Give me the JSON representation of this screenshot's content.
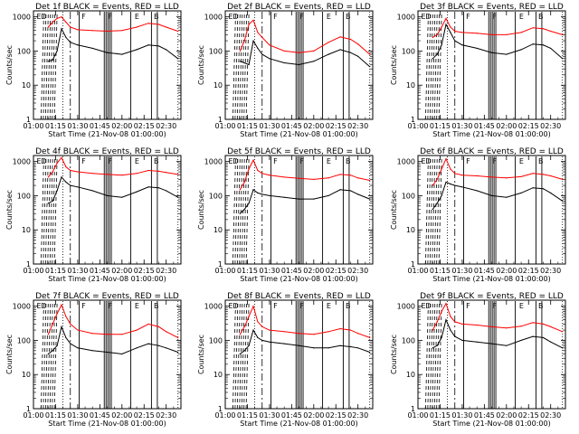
{
  "figure": {
    "x_tick_labels": [
      "01:00",
      "01:15",
      "01:30",
      "01:45",
      "02:00",
      "02:15",
      "02:30"
    ],
    "y_tick_labels": [
      "1",
      "10",
      "100",
      "1000"
    ],
    "x_label": "Start Time (21-Nov-08 01:00:00)",
    "y_label": "Counts/sec",
    "marker_labels": [
      "E",
      "D",
      "F",
      "F",
      "E",
      "B"
    ],
    "colors": {
      "events": "#000000",
      "lld": "#ff0000"
    }
  },
  "chart_data": [
    {
      "type": "line",
      "title": "Det 1f BLACK = Events, RED = LLD",
      "xlabel": "Start Time (21-Nov-08 01:00:00)",
      "ylabel": "Counts/sec",
      "xlim": [
        "01:00",
        "02:40"
      ],
      "ylim": [
        1,
        1500
      ],
      "log_y": true,
      "series": [
        {
          "name": "Events",
          "color": "#000000",
          "x": [
            "01:10",
            "01:13",
            "01:16",
            "01:19",
            "01:22",
            "01:25",
            "01:30",
            "01:40",
            "01:50",
            "02:00",
            "02:10",
            "02:18",
            "02:25",
            "02:30",
            "02:38"
          ],
          "values": [
            50,
            55,
            100,
            450,
            250,
            180,
            150,
            120,
            90,
            80,
            110,
            150,
            140,
            110,
            60
          ]
        },
        {
          "name": "LLD",
          "color": "#ff0000",
          "x": [
            "01:10",
            "01:13",
            "01:16",
            "01:19",
            "01:22",
            "01:25",
            "01:30",
            "01:40",
            "01:50",
            "02:00",
            "02:10",
            "02:18",
            "02:25",
            "02:30",
            "02:38"
          ],
          "values": [
            500,
            700,
            900,
            1000,
            700,
            500,
            420,
            400,
            380,
            400,
            500,
            650,
            600,
            500,
            380
          ]
        }
      ]
    },
    {
      "type": "line",
      "title": "Det 2f BLACK = Events, RED = LLD",
      "xlabel": "Start Time (21-Nov-08 01:00:00)",
      "ylabel": "Counts/sec",
      "xlim": [
        "01:00",
        "02:40"
      ],
      "ylim": [
        1,
        1500
      ],
      "log_y": true,
      "series": [
        {
          "name": "Events",
          "color": "#000000",
          "x": [
            "01:10",
            "01:13",
            "01:16",
            "01:19",
            "01:22",
            "01:25",
            "01:30",
            "01:40",
            "01:50",
            "02:00",
            "02:10",
            "02:18",
            "02:25",
            "02:30",
            "02:38"
          ],
          "values": [
            50,
            45,
            40,
            200,
            120,
            80,
            60,
            45,
            40,
            50,
            80,
            110,
            90,
            70,
            35
          ]
        },
        {
          "name": "LLD",
          "color": "#ff0000",
          "x": [
            "01:10",
            "01:13",
            "01:16",
            "01:19",
            "01:22",
            "01:25",
            "01:30",
            "01:40",
            "01:50",
            "02:00",
            "02:10",
            "02:18",
            "02:25",
            "02:30",
            "02:38"
          ],
          "values": [
            100,
            200,
            600,
            800,
            350,
            250,
            150,
            100,
            90,
            100,
            180,
            260,
            220,
            160,
            80
          ]
        }
      ]
    },
    {
      "type": "line",
      "title": "Det 3f BLACK = Events, RED = LLD",
      "xlabel": "Start Time (21-Nov-08 01:00:00)",
      "ylabel": "Counts/sec",
      "xlim": [
        "01:00",
        "02:40"
      ],
      "ylim": [
        1,
        1500
      ],
      "log_y": true,
      "series": [
        {
          "name": "Events",
          "color": "#000000",
          "x": [
            "01:10",
            "01:13",
            "01:16",
            "01:19",
            "01:22",
            "01:25",
            "01:30",
            "01:40",
            "01:50",
            "02:00",
            "02:10",
            "02:18",
            "02:25",
            "02:30",
            "02:38"
          ],
          "values": [
            60,
            80,
            150,
            600,
            350,
            200,
            150,
            120,
            90,
            80,
            110,
            160,
            150,
            120,
            60
          ]
        },
        {
          "name": "LLD",
          "color": "#ff0000",
          "x": [
            "01:10",
            "01:13",
            "01:16",
            "01:19",
            "01:22",
            "01:25",
            "01:30",
            "01:40",
            "01:50",
            "02:00",
            "02:10",
            "02:18",
            "02:25",
            "02:30",
            "02:38"
          ],
          "values": [
            250,
            300,
            500,
            900,
            500,
            380,
            350,
            330,
            300,
            300,
            350,
            480,
            450,
            380,
            300
          ]
        }
      ]
    },
    {
      "type": "line",
      "title": "Det 4f BLACK = Events, RED = LLD",
      "xlabel": "Start Time (21-Nov-08 01:00:00)",
      "ylabel": "Counts/sec",
      "xlim": [
        "01:00",
        "02:40"
      ],
      "ylim": [
        1,
        1500
      ],
      "log_y": true,
      "series": [
        {
          "name": "Events",
          "color": "#000000",
          "x": [
            "01:10",
            "01:13",
            "01:16",
            "01:19",
            "01:22",
            "01:25",
            "01:30",
            "01:40",
            "01:50",
            "02:00",
            "02:10",
            "02:18",
            "02:25",
            "02:30",
            "02:38"
          ],
          "values": [
            60,
            70,
            140,
            350,
            250,
            200,
            180,
            140,
            100,
            90,
            130,
            180,
            170,
            140,
            90
          ]
        },
        {
          "name": "LLD",
          "color": "#ff0000",
          "x": [
            "01:10",
            "01:13",
            "01:16",
            "01:19",
            "01:22",
            "01:25",
            "01:30",
            "01:40",
            "01:50",
            "02:00",
            "02:10",
            "02:18",
            "02:25",
            "02:30",
            "02:38"
          ],
          "values": [
            350,
            500,
            900,
            1300,
            700,
            550,
            500,
            450,
            420,
            400,
            450,
            550,
            520,
            480,
            420
          ]
        }
      ]
    },
    {
      "type": "line",
      "title": "Det 5f BLACK = Events, RED = LLD",
      "xlabel": "Start Time (21-Nov-08 01:00:00)",
      "ylabel": "Counts/sec",
      "xlim": [
        "01:00",
        "02:40"
      ],
      "ylim": [
        1,
        1500
      ],
      "log_y": true,
      "series": [
        {
          "name": "Events",
          "color": "#000000",
          "x": [
            "01:10",
            "01:13",
            "01:16",
            "01:19",
            "01:22",
            "01:25",
            "01:30",
            "01:40",
            "01:50",
            "02:00",
            "02:10",
            "02:18",
            "02:25",
            "02:30",
            "02:38"
          ],
          "values": [
            30,
            40,
            60,
            150,
            120,
            110,
            100,
            90,
            80,
            80,
            100,
            150,
            140,
            110,
            80
          ]
        },
        {
          "name": "LLD",
          "color": "#ff0000",
          "x": [
            "01:10",
            "01:13",
            "01:16",
            "01:19",
            "01:22",
            "01:25",
            "01:30",
            "01:40",
            "01:50",
            "02:00",
            "02:10",
            "02:18",
            "02:25",
            "02:30",
            "02:38"
          ],
          "values": [
            150,
            250,
            600,
            1100,
            550,
            450,
            400,
            350,
            320,
            300,
            330,
            420,
            400,
            330,
            280
          ]
        }
      ]
    },
    {
      "type": "line",
      "title": "Det 6f BLACK = Events, RED = LLD",
      "xlabel": "Start Time (21-Nov-08 01:00:00)",
      "ylabel": "Counts/sec",
      "xlim": [
        "01:00",
        "02:40"
      ],
      "ylim": [
        1,
        1500
      ],
      "log_y": true,
      "series": [
        {
          "name": "Events",
          "color": "#000000",
          "x": [
            "01:10",
            "01:13",
            "01:16",
            "01:19",
            "01:22",
            "01:25",
            "01:30",
            "01:40",
            "01:50",
            "02:00",
            "02:10",
            "02:18",
            "02:25",
            "02:30",
            "02:38"
          ],
          "values": [
            40,
            60,
            100,
            250,
            220,
            200,
            180,
            140,
            100,
            90,
            120,
            170,
            160,
            120,
            70
          ]
        },
        {
          "name": "LLD",
          "color": "#ff0000",
          "x": [
            "01:10",
            "01:13",
            "01:16",
            "01:19",
            "01:22",
            "01:25",
            "01:30",
            "01:40",
            "01:50",
            "02:00",
            "02:10",
            "02:18",
            "02:25",
            "02:30",
            "02:38"
          ],
          "values": [
            200,
            300,
            600,
            1200,
            600,
            450,
            400,
            380,
            350,
            330,
            360,
            450,
            420,
            380,
            300
          ]
        }
      ]
    },
    {
      "type": "line",
      "title": "Det 7f BLACK = Events, RED = LLD",
      "xlabel": "Start Time (21-Nov-08 01:00:00)",
      "ylabel": "Counts/sec",
      "xlim": [
        "01:00",
        "02:40"
      ],
      "ylim": [
        1,
        1500
      ],
      "log_y": true,
      "series": [
        {
          "name": "Events",
          "color": "#000000",
          "x": [
            "01:10",
            "01:13",
            "01:16",
            "01:19",
            "01:22",
            "01:25",
            "01:30",
            "01:40",
            "01:50",
            "02:00",
            "02:10",
            "02:18",
            "02:25",
            "02:30",
            "02:38"
          ],
          "values": [
            40,
            50,
            70,
            250,
            120,
            80,
            60,
            50,
            45,
            40,
            60,
            80,
            70,
            60,
            45
          ]
        },
        {
          "name": "LLD",
          "color": "#ff0000",
          "x": [
            "01:10",
            "01:13",
            "01:16",
            "01:19",
            "01:22",
            "01:25",
            "01:30",
            "01:40",
            "01:50",
            "02:00",
            "02:10",
            "02:18",
            "02:25",
            "02:30",
            "02:38"
          ],
          "values": [
            150,
            300,
            600,
            1100,
            500,
            300,
            200,
            160,
            150,
            150,
            200,
            300,
            250,
            180,
            120
          ]
        }
      ]
    },
    {
      "type": "line",
      "title": "Det 8f BLACK = Events, RED = LLD",
      "xlabel": "Start Time (21-Nov-08 01:00:00)",
      "ylabel": "Counts/sec",
      "xlim": [
        "01:00",
        "02:40"
      ],
      "ylim": [
        1,
        1500
      ],
      "log_y": true,
      "series": [
        {
          "name": "Events",
          "color": "#000000",
          "x": [
            "01:10",
            "01:13",
            "01:16",
            "01:19",
            "01:22",
            "01:25",
            "01:30",
            "01:40",
            "01:50",
            "02:00",
            "02:10",
            "02:18",
            "02:25",
            "02:30",
            "02:38"
          ],
          "values": [
            40,
            50,
            70,
            200,
            120,
            100,
            90,
            80,
            70,
            60,
            60,
            70,
            65,
            60,
            45
          ]
        },
        {
          "name": "LLD",
          "color": "#ff0000",
          "x": [
            "01:10",
            "01:13",
            "01:16",
            "01:19",
            "01:22",
            "01:25",
            "01:30",
            "01:40",
            "01:50",
            "02:00",
            "02:10",
            "02:18",
            "02:25",
            "02:30",
            "02:38"
          ],
          "values": [
            150,
            250,
            500,
            1000,
            350,
            250,
            200,
            180,
            160,
            150,
            180,
            220,
            200,
            160,
            120
          ]
        }
      ]
    },
    {
      "type": "line",
      "title": "Det 9f BLACK = Events, RED = LLD",
      "xlabel": "Start Time (21-Nov-08 01:00:00)",
      "ylabel": "Counts/sec",
      "xlim": [
        "01:00",
        "02:40"
      ],
      "ylim": [
        1,
        1500
      ],
      "log_y": true,
      "series": [
        {
          "name": "Events",
          "color": "#000000",
          "x": [
            "01:10",
            "01:13",
            "01:16",
            "01:19",
            "01:22",
            "01:25",
            "01:30",
            "01:40",
            "01:50",
            "02:00",
            "02:10",
            "02:18",
            "02:25",
            "02:30",
            "02:38"
          ],
          "values": [
            60,
            70,
            120,
            400,
            200,
            130,
            100,
            90,
            80,
            70,
            100,
            130,
            120,
            90,
            60
          ]
        },
        {
          "name": "LLD",
          "color": "#ff0000",
          "x": [
            "01:10",
            "01:13",
            "01:16",
            "01:19",
            "01:22",
            "01:25",
            "01:30",
            "01:40",
            "01:50",
            "02:00",
            "02:10",
            "02:18",
            "02:25",
            "02:30",
            "02:38"
          ],
          "values": [
            200,
            350,
            700,
            1200,
            500,
            350,
            300,
            280,
            250,
            230,
            260,
            330,
            300,
            250,
            180
          ]
        }
      ]
    }
  ]
}
